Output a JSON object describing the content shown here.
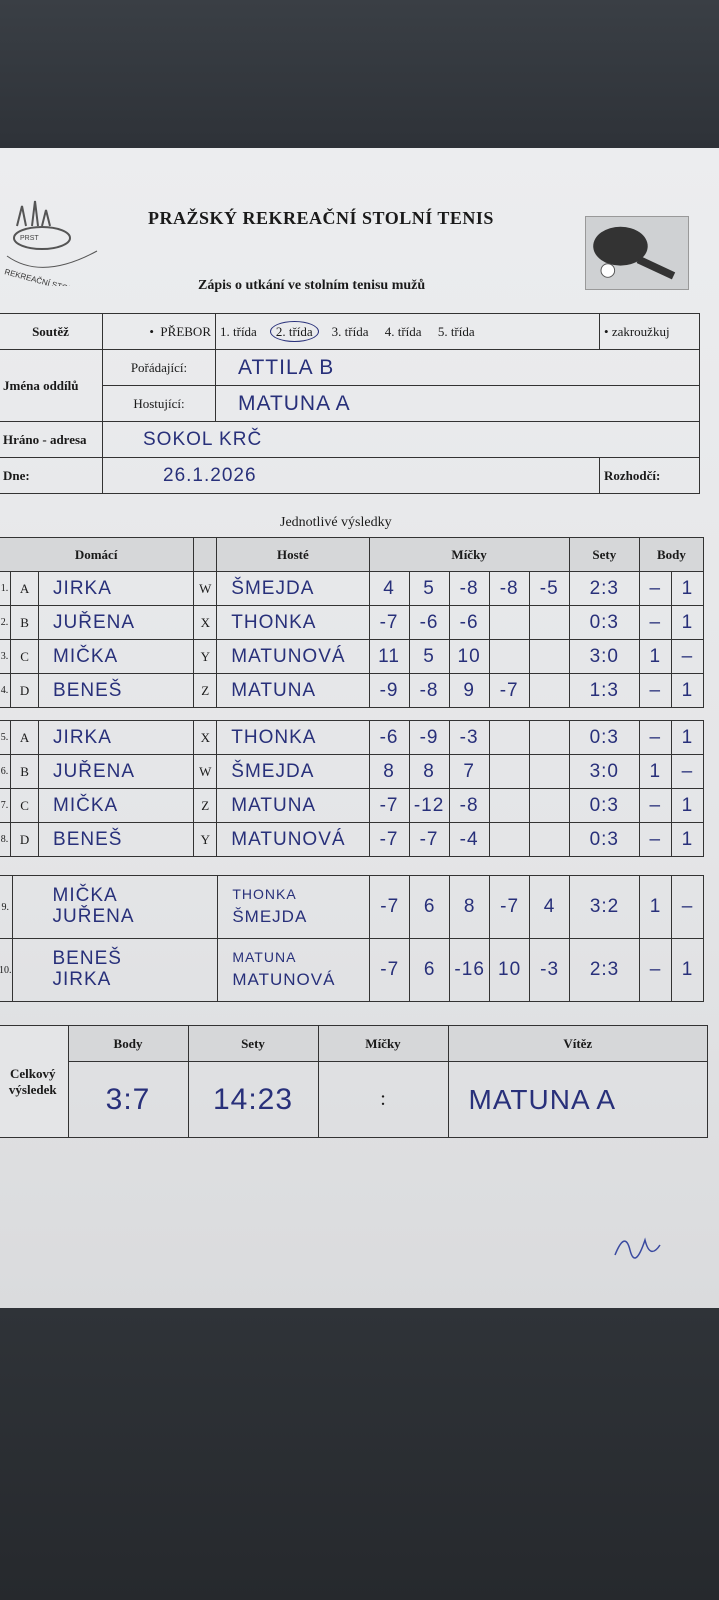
{
  "header": {
    "title": "PRAŽSKÝ REKREAČNÍ STOLNÍ TENIS",
    "subtitle": "Zápis o utkání ve stolním tenisu mužů",
    "logo_text": "PRST REKREAČNÍ STOLNÍ TENIS"
  },
  "info": {
    "soutez_label": "Soutěž",
    "preborn": "PŘEBOR",
    "classes": [
      "1. třída",
      "2. třída",
      "3. třída",
      "4. třída",
      "5. třída"
    ],
    "selected_class": "2. třída",
    "zakrouzkuj": "zakroužkuj",
    "jmena_label": "Jména oddílů",
    "poradajici_label": "Pořádající:",
    "poradajici": "ATTILA B",
    "hostujici_label": "Hostující:",
    "hostujici": "MATUNA A",
    "hrano_label": "Hráno - adresa",
    "hrano": "SOKOL KRČ",
    "dne_label": "Dne:",
    "dne": "26.1.2026",
    "rozhodci_label": "Rozhodčí:",
    "rozhodci": ""
  },
  "results": {
    "section_title": "Jednotlivé výsledky",
    "headers": {
      "domaci": "Domácí",
      "hoste": "Hosté",
      "micky": "Míčky",
      "sety": "Sety",
      "body": "Body"
    },
    "block1": [
      {
        "n": "1.",
        "hl": "A",
        "home": "JIRKA",
        "gl": "W",
        "guest": "ŠMEJDA",
        "balls": [
          "4",
          "5",
          "-8",
          "-8",
          "-5"
        ],
        "sets": "2:3",
        "b1": "–",
        "b2": "1"
      },
      {
        "n": "2.",
        "hl": "B",
        "home": "JUŘENA",
        "gl": "X",
        "guest": "THONKA",
        "balls": [
          "-7",
          "-6",
          "-6",
          "",
          ""
        ],
        "sets": "0:3",
        "b1": "–",
        "b2": "1"
      },
      {
        "n": "3.",
        "hl": "C",
        "home": "MIČKA",
        "gl": "Y",
        "guest": "MATUNOVÁ",
        "balls": [
          "11",
          "5",
          "10",
          "",
          ""
        ],
        "sets": "3:0",
        "b1": "1",
        "b2": "–"
      },
      {
        "n": "4.",
        "hl": "D",
        "home": "BENEŠ",
        "gl": "Z",
        "guest": "MATUNA",
        "balls": [
          "-9",
          "-8",
          "9",
          "-7",
          ""
        ],
        "sets": "1:3",
        "b1": "–",
        "b2": "1"
      }
    ],
    "block2": [
      {
        "n": "5.",
        "hl": "A",
        "home": "JIRKA",
        "gl": "X",
        "guest": "THONKA",
        "balls": [
          "-6",
          "-9",
          "-3",
          "",
          ""
        ],
        "sets": "0:3",
        "b1": "–",
        "b2": "1"
      },
      {
        "n": "6.",
        "hl": "B",
        "home": "JUŘENA",
        "gl": "W",
        "guest": "ŠMEJDA",
        "balls": [
          "8",
          "8",
          "7",
          "",
          ""
        ],
        "sets": "3:0",
        "b1": "1",
        "b2": "–"
      },
      {
        "n": "7.",
        "hl": "C",
        "home": "MIČKA",
        "gl": "Z",
        "guest": "MATUNA",
        "balls": [
          "-7",
          "-12",
          "-8",
          "",
          ""
        ],
        "sets": "0:3",
        "b1": "–",
        "b2": "1"
      },
      {
        "n": "8.",
        "hl": "D",
        "home": "BENEŠ",
        "gl": "Y",
        "guest": "MATUNOVÁ",
        "balls": [
          "-7",
          "-7",
          "-4",
          "",
          ""
        ],
        "sets": "0:3",
        "b1": "–",
        "b2": "1"
      }
    ],
    "doubles": [
      {
        "n": "9.",
        "home1": "MIČKA",
        "home2": "JUŘENA",
        "guest1": "THONKA",
        "guest2": "ŠMEJDA",
        "balls": [
          "-7",
          "6",
          "8",
          "-7",
          "4"
        ],
        "sets": "3:2",
        "b1": "1",
        "b2": "–"
      },
      {
        "n": "10.",
        "home1": "BENEŠ",
        "home2": "JIRKA",
        "guest1": "MATUNA",
        "guest2": "MATUNOVÁ",
        "balls": [
          "-7",
          "6",
          "-16",
          "10",
          "-3"
        ],
        "sets": "2:3",
        "b1": "–",
        "b2": "1"
      }
    ]
  },
  "summary": {
    "label1": "Celkový",
    "label2": "výsledek",
    "body_label": "Body",
    "sety_label": "Sety",
    "micky_label": "Míčky",
    "vitez_label": "Vítěz",
    "body": "3:7",
    "sety": "14:23",
    "micky": ":",
    "vitez": "MATUNA A"
  }
}
